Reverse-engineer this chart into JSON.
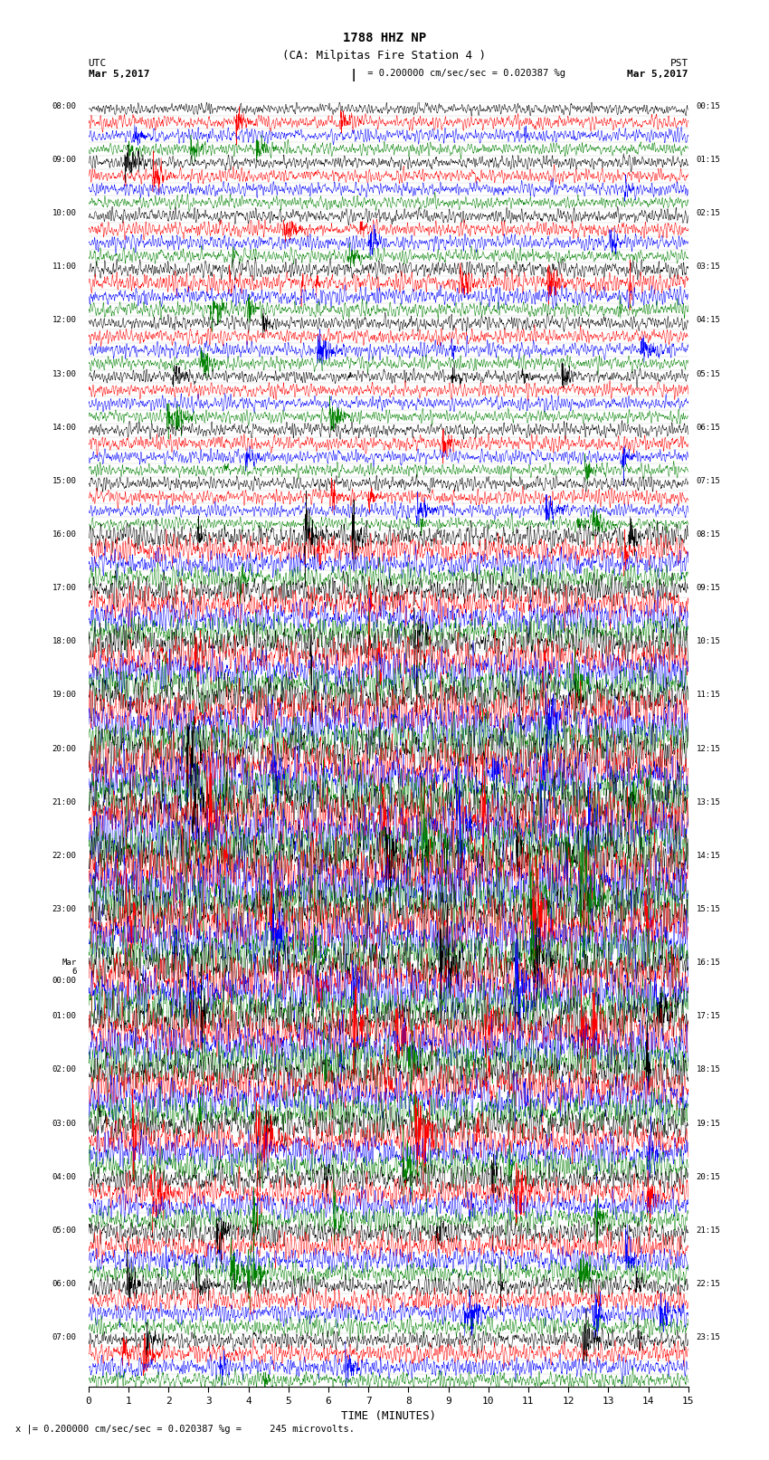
{
  "title_line1": "1788 HHZ NP",
  "title_line2": "(CA: Milpitas Fire Station 4 )",
  "scale_bar_text": "= 0.200000 cm/sec/sec = 0.020387 %g",
  "left_header": "UTC",
  "left_date": "Mar 5,2017",
  "right_header": "PST",
  "right_date": "Mar 5,2017",
  "xlabel": "TIME (MINUTES)",
  "bottom_note": "x |= 0.200000 cm/sec/sec = 0.020387 %g =     245 microvolts.",
  "trace_colors": [
    "black",
    "red",
    "blue",
    "green"
  ],
  "num_rows": 96,
  "minutes_per_row": 15,
  "fig_width": 8.5,
  "fig_height": 16.13,
  "dpi": 100,
  "bg_color": "white",
  "trace_linewidth": 0.35,
  "utc_labels": [
    "08:00",
    "",
    "",
    "",
    "09:00",
    "",
    "",
    "",
    "10:00",
    "",
    "",
    "",
    "11:00",
    "",
    "",
    "",
    "12:00",
    "",
    "",
    "",
    "13:00",
    "",
    "",
    "",
    "14:00",
    "",
    "",
    "",
    "15:00",
    "",
    "",
    "",
    "16:00",
    "",
    "",
    "",
    "17:00",
    "",
    "",
    "",
    "18:00",
    "",
    "",
    "",
    "19:00",
    "",
    "",
    "",
    "20:00",
    "",
    "",
    "",
    "21:00",
    "",
    "",
    "",
    "22:00",
    "",
    "",
    "",
    "23:00",
    "",
    "",
    "",
    "Mar\n6\n00:00",
    "",
    "",
    "",
    "01:00",
    "",
    "",
    "",
    "02:00",
    "",
    "",
    "",
    "03:00",
    "",
    "",
    "",
    "04:00",
    "",
    "",
    "",
    "05:00",
    "",
    "",
    "",
    "06:00",
    "",
    "",
    "",
    "07:00",
    "",
    "",
    ""
  ],
  "pst_labels": [
    "00:15",
    "",
    "",
    "",
    "01:15",
    "",
    "",
    "",
    "02:15",
    "",
    "",
    "",
    "03:15",
    "",
    "",
    "",
    "04:15",
    "",
    "",
    "",
    "05:15",
    "",
    "",
    "",
    "06:15",
    "",
    "",
    "",
    "07:15",
    "",
    "",
    "",
    "08:15",
    "",
    "",
    "",
    "09:15",
    "",
    "",
    "",
    "10:15",
    "",
    "",
    "",
    "11:15",
    "",
    "",
    "",
    "12:15",
    "",
    "",
    "",
    "13:15",
    "",
    "",
    "",
    "14:15",
    "",
    "",
    "",
    "15:15",
    "",
    "",
    "",
    "16:15",
    "",
    "",
    "",
    "17:15",
    "",
    "",
    "",
    "18:15",
    "",
    "",
    "",
    "19:15",
    "",
    "",
    "",
    "20:15",
    "",
    "",
    "",
    "21:15",
    "",
    "",
    "",
    "22:15",
    "",
    "",
    "",
    "23:15",
    "",
    "",
    ""
  ],
  "amplitude_profile": [
    0.08,
    0.1,
    0.1,
    0.09,
    0.09,
    0.1,
    0.1,
    0.09,
    0.1,
    0.11,
    0.11,
    0.1,
    0.12,
    0.14,
    0.13,
    0.11,
    0.1,
    0.11,
    0.11,
    0.1,
    0.09,
    0.1,
    0.1,
    0.09,
    0.1,
    0.11,
    0.1,
    0.09,
    0.1,
    0.11,
    0.1,
    0.09,
    0.18,
    0.2,
    0.19,
    0.18,
    0.22,
    0.25,
    0.24,
    0.22,
    0.28,
    0.3,
    0.29,
    0.27,
    0.32,
    0.35,
    0.33,
    0.3,
    0.38,
    0.4,
    0.38,
    0.36,
    0.4,
    0.42,
    0.4,
    0.38,
    0.42,
    0.45,
    0.43,
    0.4,
    0.38,
    0.4,
    0.38,
    0.36,
    0.35,
    0.38,
    0.36,
    0.34,
    0.33,
    0.35,
    0.33,
    0.31,
    0.3,
    0.32,
    0.3,
    0.28,
    0.25,
    0.27,
    0.25,
    0.23,
    0.2,
    0.22,
    0.2,
    0.18,
    0.18,
    0.2,
    0.18,
    0.16,
    0.15,
    0.17,
    0.15,
    0.14,
    0.13,
    0.15,
    0.14,
    0.12
  ]
}
